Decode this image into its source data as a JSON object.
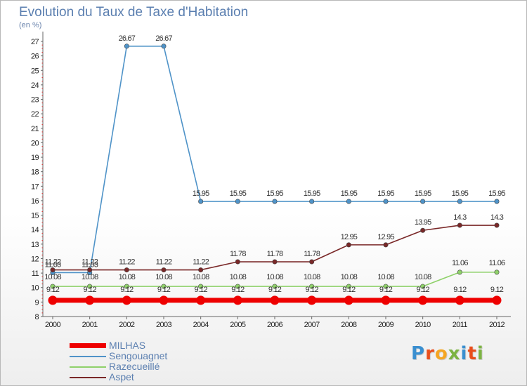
{
  "title": "Evolution du Taux de Taxe d'Habitation",
  "subtitle": "(en %)",
  "logo_text": "Proxiti",
  "logo_colors": [
    "#3a8fd0",
    "#e94e1b",
    "#f5a623",
    "#7cb342",
    "#3a8fd0",
    "#e94e1b",
    "#7cb342"
  ],
  "chart_data": {
    "type": "line",
    "x": [
      "2000",
      "2001",
      "2002",
      "2003",
      "2004",
      "2005",
      "2006",
      "2007",
      "2008",
      "2009",
      "2010",
      "2011",
      "2012"
    ],
    "ylim": [
      8,
      27
    ],
    "yticks": [
      8,
      9,
      10,
      11,
      12,
      13,
      14,
      15,
      16,
      17,
      18,
      19,
      20,
      21,
      22,
      23,
      24,
      25,
      26,
      27
    ],
    "grid": false,
    "legend": "bottom-left",
    "series": [
      {
        "name": "MILHAS",
        "color": "#ee0000",
        "values": [
          9.12,
          9.12,
          9.12,
          9.12,
          9.12,
          9.12,
          9.12,
          9.12,
          9.12,
          9.12,
          9.12,
          9.12,
          9.12
        ],
        "labels": [
          "9.12",
          "9.12",
          "9.12",
          "9.12",
          "9.12",
          "9.12",
          "9.12",
          "9.12",
          "9.12",
          "9.12",
          "9.12",
          "9.12",
          "9.12"
        ]
      },
      {
        "name": "Sengouagnet",
        "color": "#4f93c8",
        "values": [
          11.03,
          11.03,
          26.67,
          26.67,
          15.95,
          15.95,
          15.95,
          15.95,
          15.95,
          15.95,
          15.95,
          15.95,
          15.95
        ],
        "labels": [
          "11.03",
          "11.03",
          "26.67",
          "26.67",
          "15.95",
          "15.95",
          "15.95",
          "15.95",
          "15.95",
          "15.95",
          "15.95",
          "15.95",
          "15.95"
        ]
      },
      {
        "name": "Razecueillé",
        "color": "#8fd16a",
        "values": [
          10.08,
          10.08,
          10.08,
          10.08,
          10.08,
          10.08,
          10.08,
          10.08,
          10.08,
          10.08,
          10.08,
          11.06,
          11.06
        ],
        "labels": [
          "10.08",
          "10.08",
          "10.08",
          "10.08",
          "10.08",
          "10.08",
          "10.08",
          "10.08",
          "10.08",
          "10.08",
          "10.08",
          "11.06",
          "11.06"
        ]
      },
      {
        "name": "Aspet",
        "color": "#7a2828",
        "values": [
          11.22,
          11.22,
          11.22,
          11.22,
          11.22,
          11.78,
          11.78,
          11.78,
          12.95,
          12.95,
          13.95,
          14.3,
          14.3
        ],
        "labels": [
          "11.22",
          "11.22",
          "11.22",
          "11.22",
          "11.22",
          "11.78",
          "11.78",
          "11.78",
          "12.95",
          "12.95",
          "13.95",
          "14.3",
          "14.3"
        ]
      }
    ]
  }
}
